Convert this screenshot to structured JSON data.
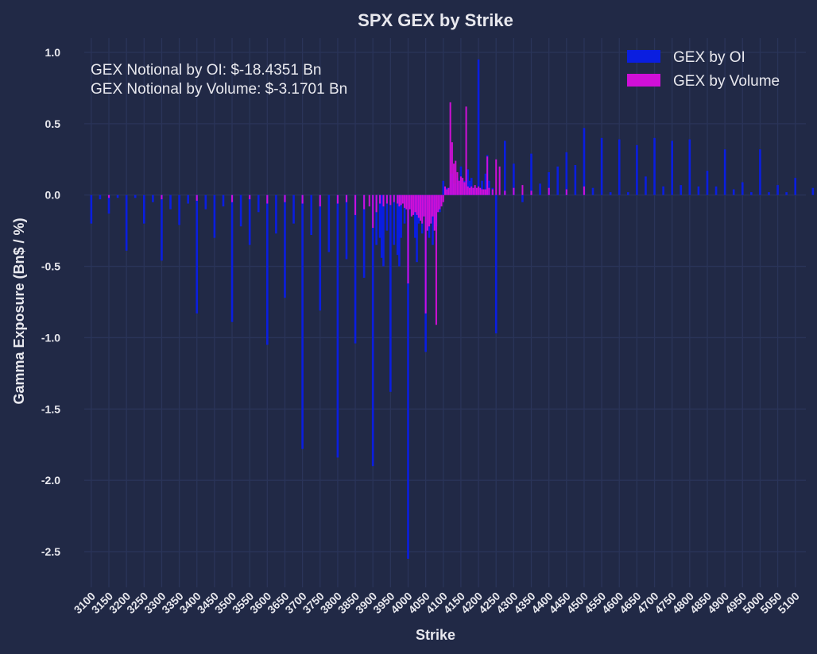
{
  "chart_data": {
    "type": "bar",
    "title": "SPX GEX by Strike",
    "xlabel": "Strike",
    "ylabel": "Gamma Exposure (Bn$ / %)",
    "ylim": [
      -2.75,
      1.1
    ],
    "xlim": [
      3080,
      5130
    ],
    "yticks": [
      1.0,
      0.5,
      0.0,
      -0.5,
      -1.0,
      -1.5,
      -2.0,
      -2.5
    ],
    "ytick_labels": [
      "1.0",
      "0.5",
      "0.0",
      "-0.5",
      "-1.0",
      "-1.5",
      "-2.0",
      "-2.5"
    ],
    "xticks": [
      3100,
      3150,
      3200,
      3250,
      3300,
      3350,
      3400,
      3450,
      3500,
      3550,
      3600,
      3650,
      3700,
      3750,
      3800,
      3850,
      3900,
      3950,
      4000,
      4050,
      4100,
      4150,
      4200,
      4250,
      4300,
      4350,
      4400,
      4450,
      4500,
      4550,
      4600,
      4650,
      4700,
      4750,
      4800,
      4850,
      4900,
      4950,
      5000,
      5050,
      5100
    ],
    "grid": true,
    "legend_position": "top-right",
    "annotations": [
      "GEX Notional by OI: $-18.4351 Bn",
      "GEX Notional by Volume: $-3.1701 Bn"
    ],
    "series": [
      {
        "name": "GEX by OI",
        "color": "#0a1ee0",
        "x": [
          3100,
          3125,
          3150,
          3175,
          3200,
          3225,
          3250,
          3275,
          3300,
          3325,
          3350,
          3375,
          3400,
          3425,
          3450,
          3475,
          3500,
          3525,
          3550,
          3575,
          3600,
          3625,
          3650,
          3675,
          3700,
          3725,
          3750,
          3775,
          3800,
          3825,
          3850,
          3875,
          3900,
          3910,
          3920,
          3925,
          3930,
          3940,
          3950,
          3960,
          3970,
          3975,
          3980,
          3990,
          4000,
          4010,
          4020,
          4025,
          4030,
          4040,
          4050,
          4060,
          4070,
          4075,
          4080,
          4090,
          4100,
          4110,
          4120,
          4125,
          4130,
          4140,
          4150,
          4160,
          4170,
          4175,
          4180,
          4190,
          4200,
          4210,
          4220,
          4225,
          4230,
          4240,
          4250,
          4275,
          4300,
          4325,
          4350,
          4375,
          4400,
          4425,
          4450,
          4475,
          4500,
          4525,
          4550,
          4575,
          4600,
          4625,
          4650,
          4675,
          4700,
          4725,
          4750,
          4775,
          4800,
          4825,
          4850,
          4875,
          4900,
          4925,
          4950,
          4975,
          5000,
          5025,
          5050,
          5075,
          5100,
          5150
        ],
        "values": [
          -0.2,
          -0.03,
          -0.13,
          -0.02,
          -0.39,
          -0.02,
          -0.2,
          -0.05,
          -0.46,
          -0.1,
          -0.21,
          -0.06,
          -0.83,
          -0.1,
          -0.3,
          -0.08,
          -0.89,
          -0.22,
          -0.35,
          -0.12,
          -1.05,
          -0.27,
          -0.72,
          -0.2,
          -1.78,
          -0.28,
          -0.81,
          -0.4,
          -1.84,
          -0.45,
          -1.04,
          -0.58,
          -1.9,
          -0.35,
          -0.3,
          -0.44,
          -0.5,
          -0.25,
          -1.38,
          -0.35,
          -0.42,
          -0.5,
          -0.3,
          -0.2,
          -2.55,
          -0.15,
          -0.3,
          -0.47,
          -0.2,
          -0.27,
          -1.1,
          -0.3,
          -0.35,
          -0.2,
          -0.22,
          -0.12,
          0.1,
          0.05,
          0.06,
          0.15,
          0.08,
          0.12,
          0.2,
          0.1,
          0.18,
          0.1,
          0.12,
          0.06,
          0.95,
          0.1,
          0.15,
          0.28,
          0.1,
          0.05,
          -0.97,
          0.38,
          0.22,
          -0.05,
          0.29,
          0.08,
          0.16,
          0.2,
          0.3,
          0.21,
          0.47,
          0.05,
          0.4,
          0.02,
          0.39,
          0.02,
          0.35,
          0.13,
          0.4,
          0.06,
          0.38,
          0.07,
          0.39,
          0.06,
          0.17,
          0.06,
          0.32,
          0.04,
          0.09,
          0.02,
          0.32,
          0.02,
          0.07,
          0.02,
          0.12,
          0.05
        ]
      },
      {
        "name": "GEX by Volume",
        "color": "#d00fd7",
        "x": [
          3150,
          3300,
          3400,
          3500,
          3550,
          3600,
          3650,
          3700,
          3750,
          3800,
          3825,
          3850,
          3875,
          3890,
          3900,
          3910,
          3920,
          3930,
          3940,
          3950,
          3960,
          3970,
          3975,
          3980,
          3985,
          3990,
          3995,
          4000,
          4005,
          4010,
          4015,
          4020,
          4025,
          4030,
          4035,
          4040,
          4045,
          4050,
          4055,
          4060,
          4065,
          4070,
          4075,
          4080,
          4085,
          4090,
          4095,
          4100,
          4105,
          4110,
          4115,
          4120,
          4125,
          4130,
          4135,
          4140,
          4145,
          4150,
          4155,
          4160,
          4165,
          4170,
          4175,
          4180,
          4185,
          4190,
          4195,
          4200,
          4205,
          4210,
          4215,
          4220,
          4225,
          4230,
          4240,
          4250,
          4260,
          4275,
          4300,
          4325,
          4350,
          4400,
          4450,
          4500
        ],
        "values": [
          -0.02,
          -0.03,
          -0.04,
          -0.05,
          -0.03,
          -0.06,
          -0.05,
          -0.06,
          -0.08,
          -0.06,
          -0.05,
          -0.14,
          -0.1,
          -0.08,
          -0.23,
          -0.12,
          -0.06,
          -0.08,
          -0.06,
          -0.07,
          -0.05,
          -0.06,
          -0.08,
          -0.07,
          -0.06,
          -0.09,
          -0.1,
          -0.62,
          -0.1,
          -0.15,
          -0.14,
          -0.12,
          -0.14,
          -0.16,
          -0.18,
          -0.2,
          -0.15,
          -0.83,
          -0.25,
          -0.22,
          -0.2,
          -0.15,
          -0.25,
          -0.91,
          -0.12,
          -0.1,
          -0.08,
          -0.05,
          0.06,
          0.04,
          0.05,
          0.65,
          0.37,
          0.22,
          0.24,
          0.16,
          0.1,
          0.13,
          0.12,
          0.09,
          0.62,
          0.06,
          0.05,
          0.06,
          0.05,
          0.07,
          0.05,
          0.06,
          0.05,
          0.04,
          0.04,
          0.04,
          0.27,
          0.05,
          0.04,
          0.25,
          0.2,
          0.03,
          0.05,
          0.07,
          0.03,
          0.05,
          0.04,
          0.06
        ]
      }
    ]
  }
}
